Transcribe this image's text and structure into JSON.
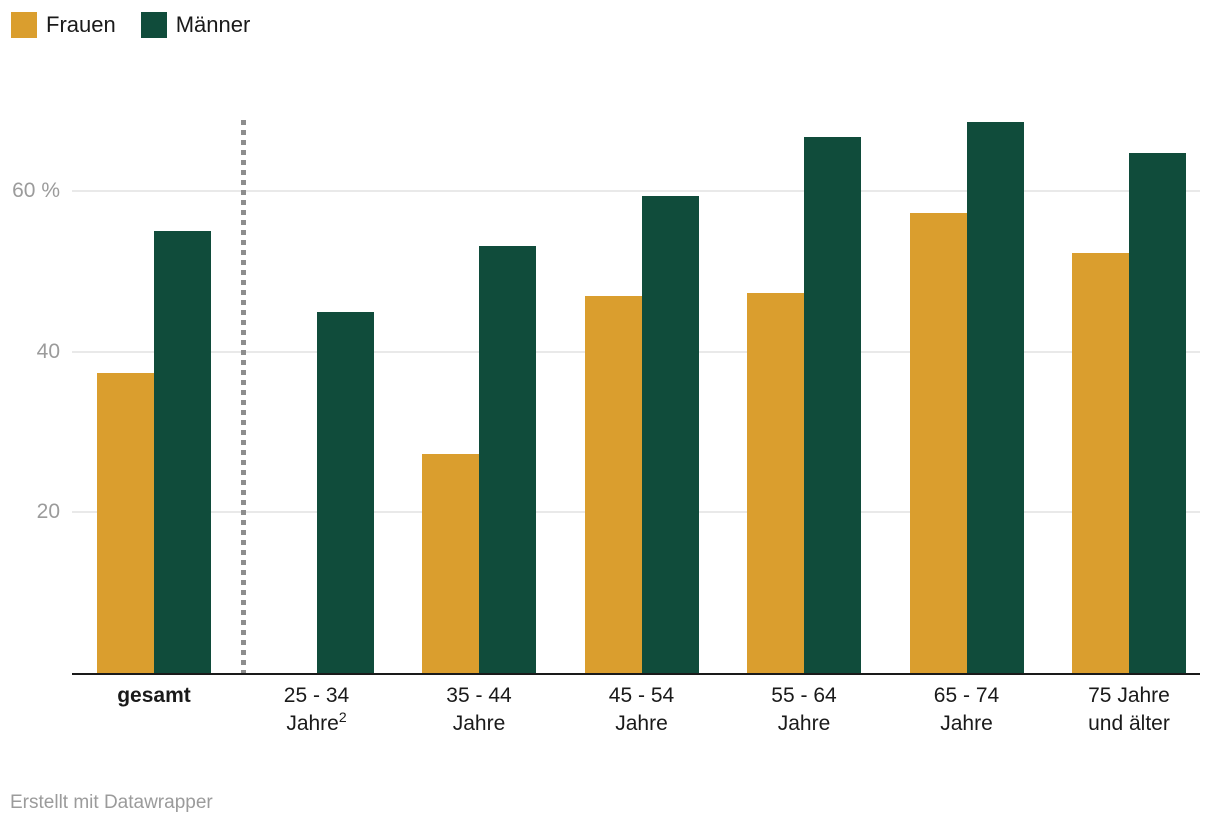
{
  "legend": {
    "items": [
      {
        "label": "Frauen",
        "color": "#DA9E2E"
      },
      {
        "label": "Männer",
        "color": "#104C3B"
      }
    ]
  },
  "chart_data": {
    "type": "bar",
    "title": "",
    "categories": [
      "gesamt",
      "25 - 34 Jahre²",
      "35 - 44 Jahre",
      "45 - 54 Jahre",
      "55 - 64 Jahre",
      "65 - 74 Jahre",
      "75 Jahre und älter"
    ],
    "series": [
      {
        "name": "Frauen",
        "color": "#DA9E2E",
        "values": [
          37.3,
          null,
          27.3,
          46.9,
          47.3,
          57.3,
          52.3
        ]
      },
      {
        "name": "Männer",
        "color": "#104C3B",
        "values": [
          55.0,
          44.9,
          53.2,
          59.4,
          66.8,
          68.6,
          64.7
        ]
      }
    ],
    "unit": "%",
    "ylim": [
      0,
      69.5
    ],
    "yticks": [
      {
        "value": 20,
        "label": "20"
      },
      {
        "value": 40,
        "label": "40"
      },
      {
        "value": 60,
        "label": "60 %"
      }
    ],
    "grid": "horizontal",
    "legend_position": "top-left",
    "separator": {
      "after_category_index": 0,
      "style": "dotted-vertical"
    },
    "x_labels": [
      {
        "line1": "gesamt",
        "line2": "",
        "bold": true,
        "sup": ""
      },
      {
        "line1": "25 - 34",
        "line2": "Jahre",
        "bold": false,
        "sup": "2"
      },
      {
        "line1": "35 - 44",
        "line2": "Jahre",
        "bold": false,
        "sup": ""
      },
      {
        "line1": "45 - 54",
        "line2": "Jahre",
        "bold": false,
        "sup": ""
      },
      {
        "line1": "55 - 64",
        "line2": "Jahre",
        "bold": false,
        "sup": ""
      },
      {
        "line1": "65 - 74",
        "line2": "Jahre",
        "bold": false,
        "sup": ""
      },
      {
        "line1": "75 Jahre",
        "line2": "und älter",
        "bold": false,
        "sup": ""
      }
    ]
  },
  "footer": {
    "credit": "Erstellt mit Datawrapper"
  }
}
